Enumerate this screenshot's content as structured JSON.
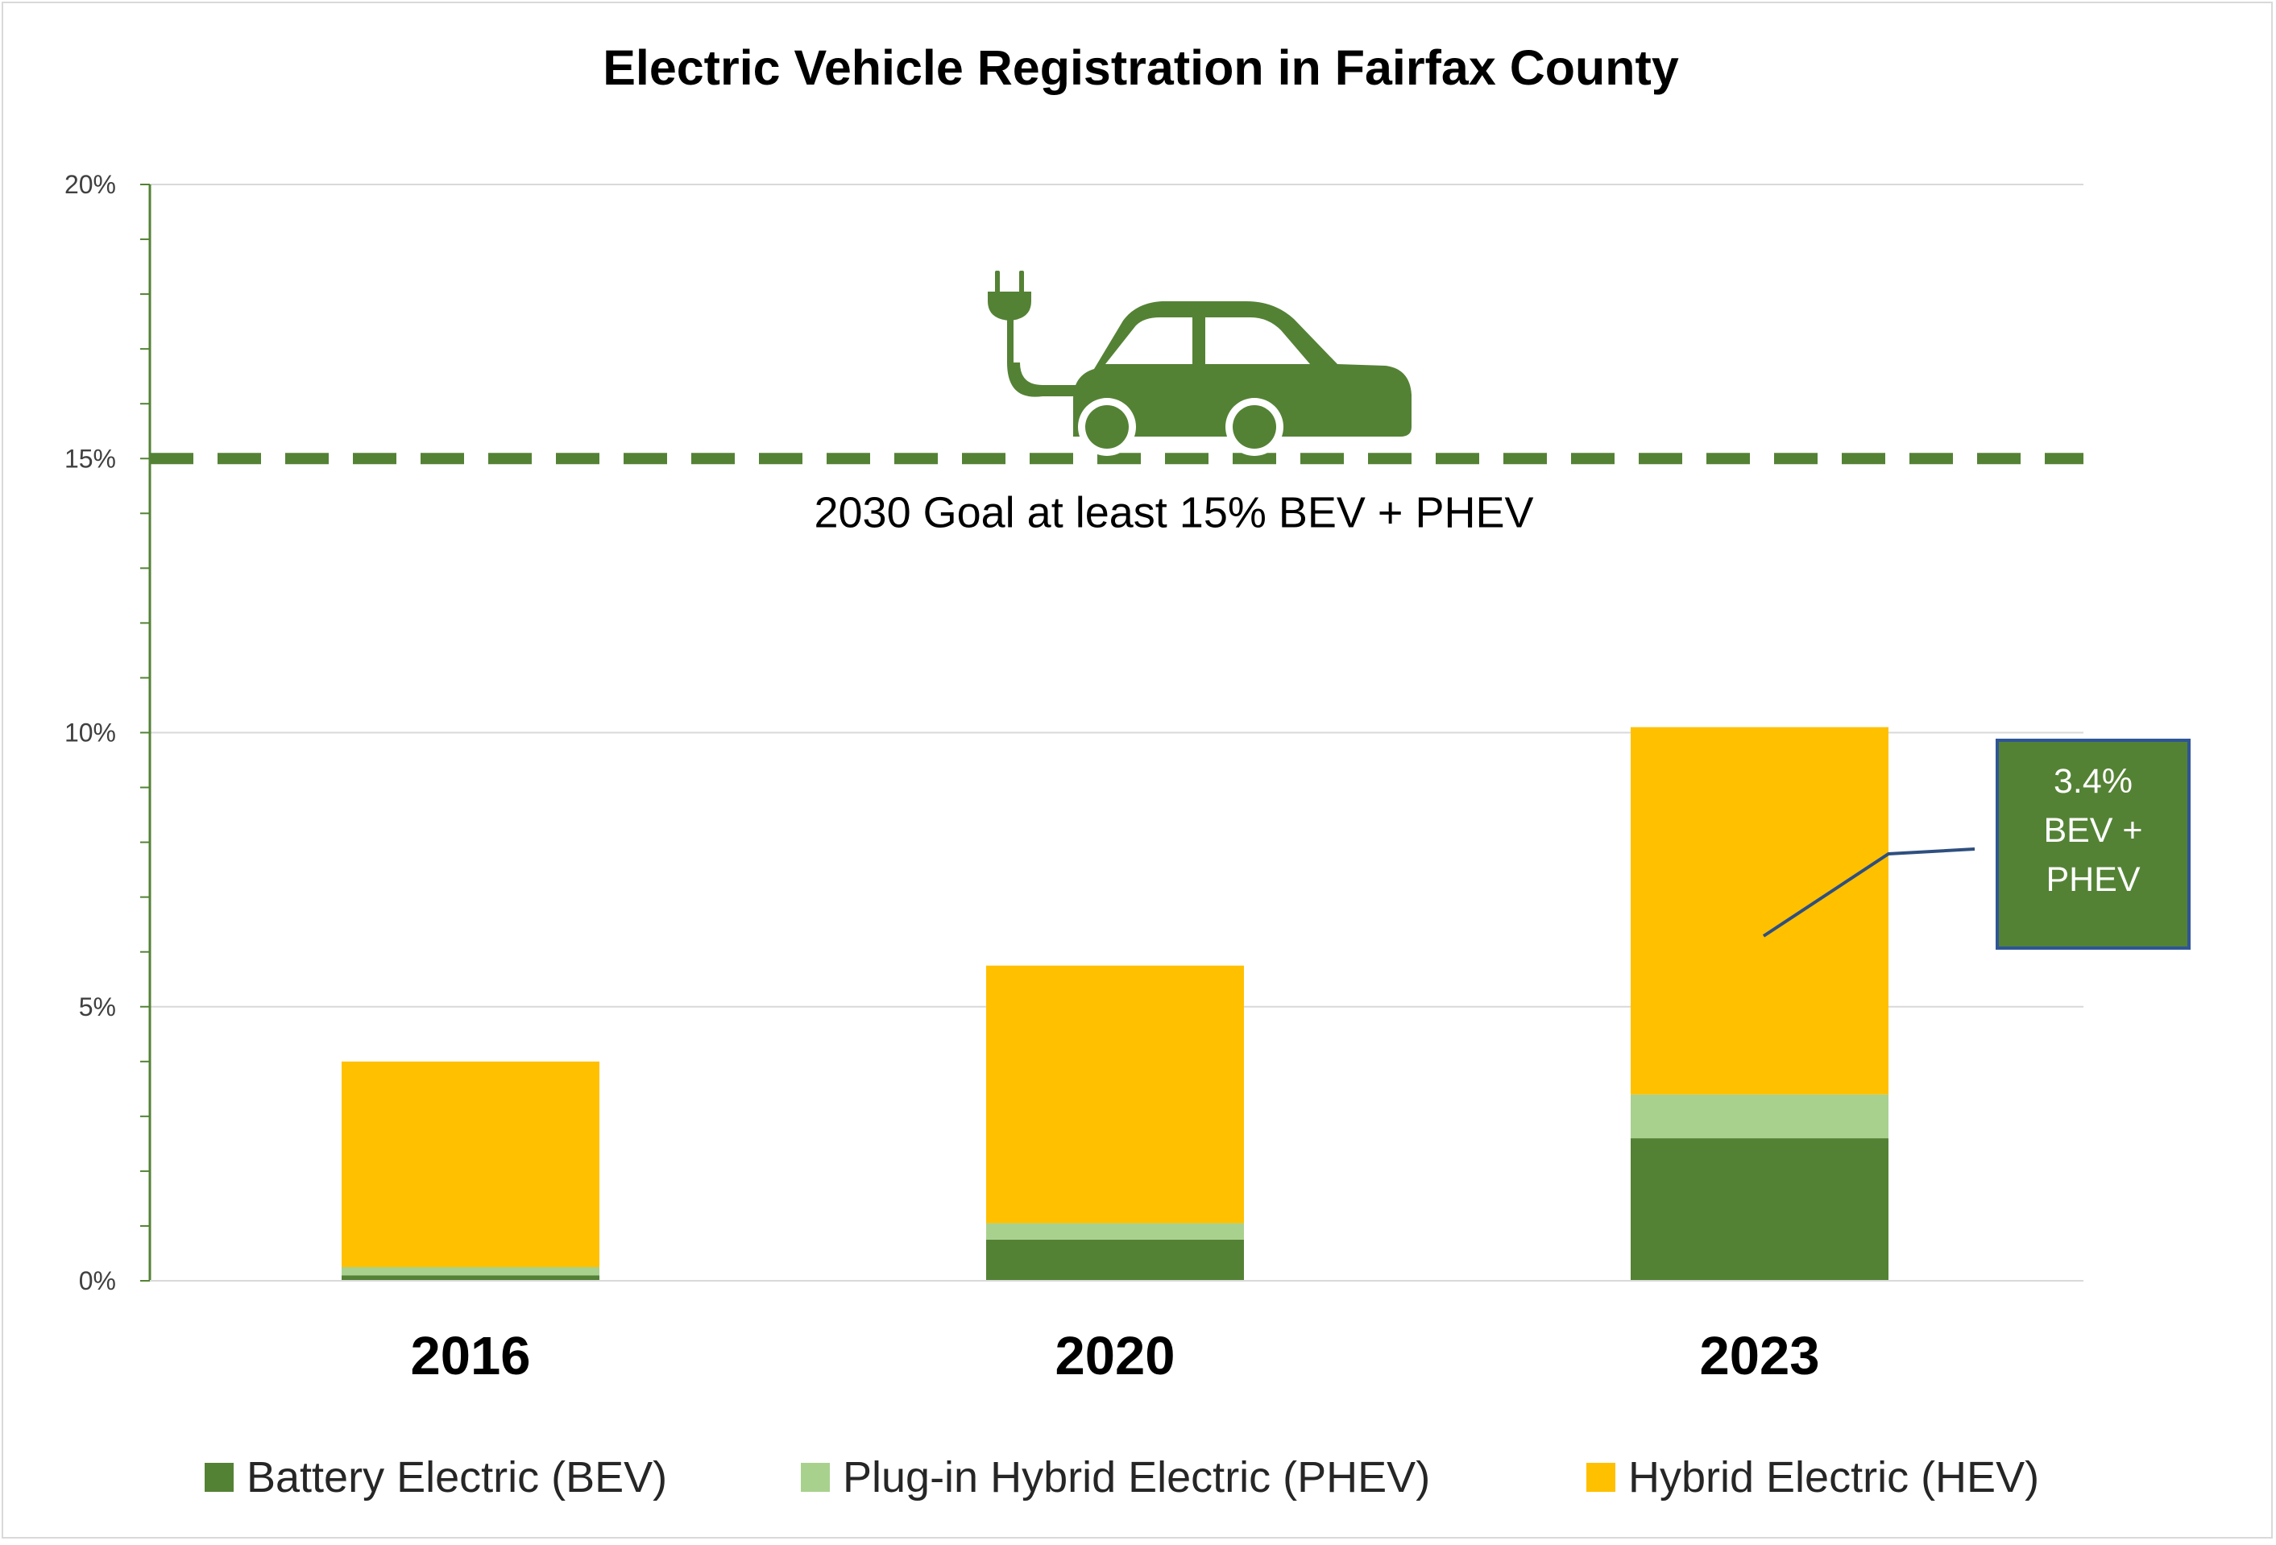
{
  "chart_data": {
    "type": "bar",
    "stacked": true,
    "title": "Electric Vehicle Registration in Fairfax County",
    "categories": [
      "2016",
      "2020",
      "2023"
    ],
    "series": [
      {
        "name": "Battery Electric (BEV)",
        "color": "#548235",
        "values": [
          0.1,
          0.75,
          2.6
        ]
      },
      {
        "name": "Plug-in Hybrid Electric (PHEV)",
        "color": "#a9d18e",
        "values": [
          0.15,
          0.3,
          0.8
        ]
      },
      {
        "name": "Hybrid Electric (HEV)",
        "color": "#ffc000",
        "values": [
          3.75,
          4.7,
          6.7
        ]
      }
    ],
    "ylim": [
      0,
      20
    ],
    "yticks": [
      "0%",
      "5%",
      "10%",
      "15%",
      "20%"
    ],
    "ytick_values": [
      0,
      5,
      10,
      15,
      20
    ],
    "grid": true,
    "legend_position": "bottom",
    "goal_line": {
      "value": 15,
      "label": "2030 Goal at least 15% BEV + PHEV",
      "color": "#548235"
    },
    "callout": {
      "lines": [
        "3.4%",
        "BEV +",
        "PHEV"
      ],
      "category": "2023",
      "fill": "#548235",
      "border": "#2f5597"
    },
    "icon": "electric-car-plug-icon"
  }
}
